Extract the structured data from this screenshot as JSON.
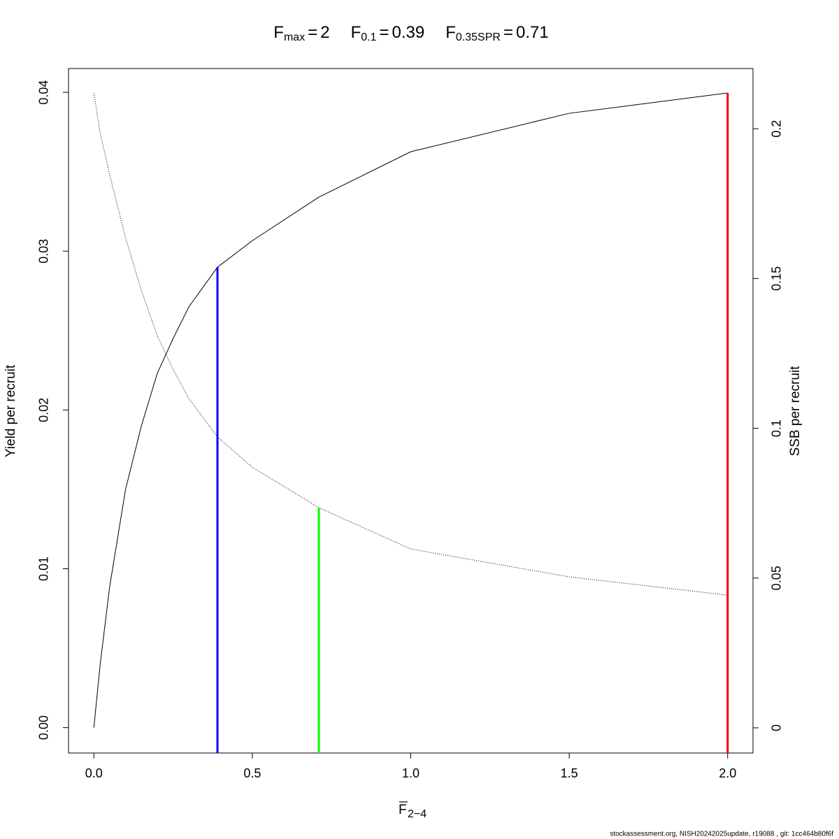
{
  "chart_data": {
    "type": "line",
    "title_parts": [
      {
        "symbol": "F",
        "sub": "max",
        "eq": "=",
        "value": 2,
        "color": "#ff0000",
        "top": 0.03996,
        "axis": "y"
      },
      {
        "symbol": "F",
        "sub": "0.1",
        "eq": "=",
        "value": 0.39,
        "color": "#0000ff",
        "top": 0.02899,
        "axis": "y"
      },
      {
        "symbol": "F",
        "sub": "0.35SPR",
        "eq": "=",
        "value": 0.71,
        "color": "#00ff00",
        "top": 0.0735,
        "axis": "y2"
      }
    ],
    "xlabel": {
      "symbol": "F",
      "sub": "2−4"
    },
    "ylabel": "Yield per recruit",
    "y2label": "SSB per recruit",
    "footer": "stockassessment.org, NISH20242025update, r19088 , git: 1cc464b80f6f",
    "x": [
      0,
      0.02,
      0.05,
      0.1,
      0.15,
      0.2,
      0.25,
      0.3,
      0.39,
      0.5,
      0.71,
      1.0,
      1.5,
      2.0
    ],
    "series": [
      {
        "name": "Yield per recruit",
        "color": "#000000",
        "dash": "none",
        "axis": "y",
        "values": [
          0,
          0.004,
          0.0089,
          0.015,
          0.019,
          0.0223,
          0.0245,
          0.0265,
          0.02899,
          0.03066,
          0.0334,
          0.03626,
          0.03868,
          0.03996
        ]
      },
      {
        "name": "SSB per recruit",
        "color": "#000000",
        "dash": "1 2",
        "axis": "y2",
        "values": [
          0.2119,
          0.1986,
          0.1846,
          0.1636,
          0.146,
          0.1309,
          0.1197,
          0.1099,
          0.0971,
          0.087,
          0.0735,
          0.0597,
          0.0504,
          0.0443
        ]
      }
    ],
    "xlim": [
      -0.08,
      2.08
    ],
    "xticks": [
      {
        "value": 0,
        "label": "0.0"
      },
      {
        "value": 0.5,
        "label": "0.5"
      },
      {
        "value": 1,
        "label": "1.0"
      },
      {
        "value": 1.5,
        "label": "1.5"
      },
      {
        "value": 2,
        "label": "2.0"
      }
    ],
    "ylim": [
      -0.0016,
      0.0415
    ],
    "yticks": [
      {
        "value": 0,
        "label": "0.00"
      },
      {
        "value": 0.01,
        "label": "0.01"
      },
      {
        "value": 0.02,
        "label": "0.02"
      },
      {
        "value": 0.03,
        "label": "0.03"
      },
      {
        "value": 0.04,
        "label": "0.04"
      }
    ],
    "y2lim": [
      -0.0084,
      0.2201
    ],
    "y2ticks": [
      0,
      0.05,
      0.1,
      0.15,
      0.2
    ]
  }
}
